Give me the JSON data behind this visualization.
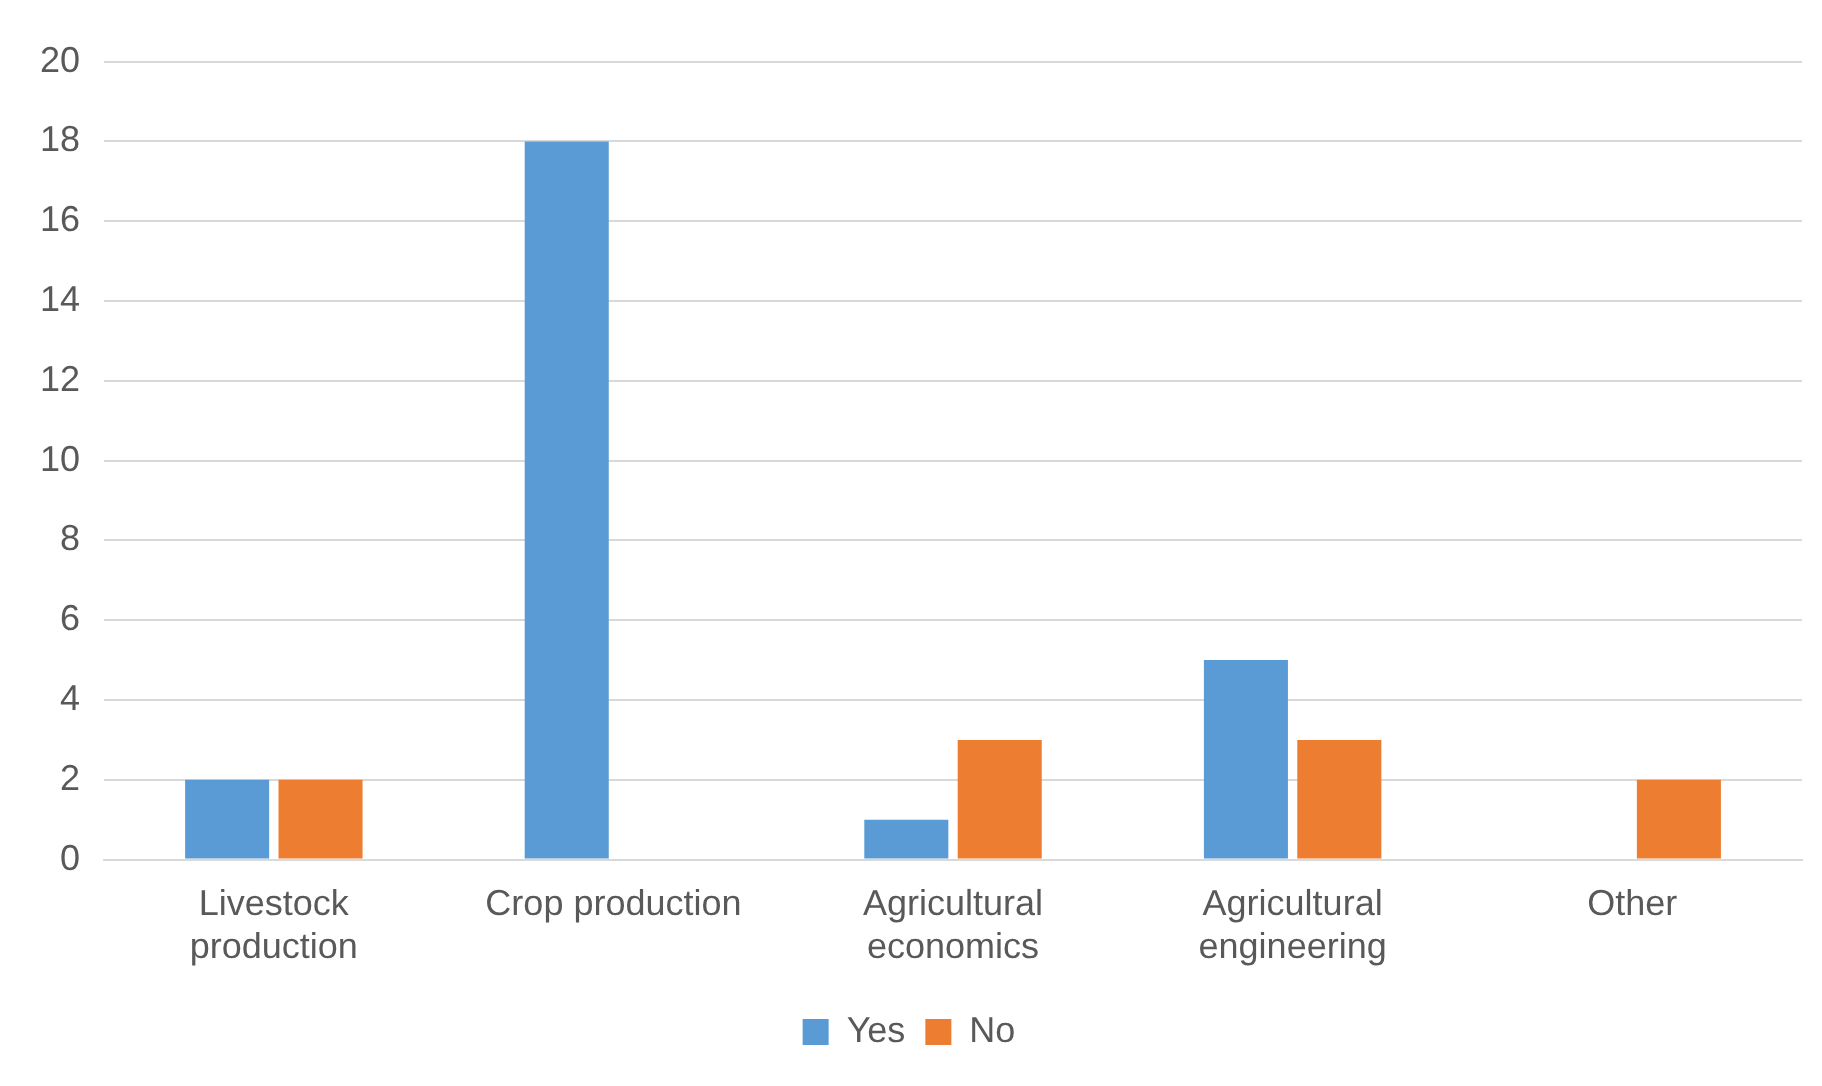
{
  "chart_data": {
    "type": "bar",
    "categories": [
      "Livestock production",
      "Crop production",
      "Agricultural economics",
      "Agricultural engineering",
      "Other"
    ],
    "series": [
      {
        "name": "Yes",
        "color": "#5b9bd5",
        "values": [
          2,
          18,
          1,
          5,
          0
        ]
      },
      {
        "name": "No",
        "color": "#ed7d31",
        "values": [
          2,
          0,
          3,
          3,
          2
        ]
      }
    ],
    "ylim": [
      0,
      20
    ],
    "yticks": [
      0,
      2,
      4,
      6,
      8,
      10,
      12,
      14,
      16,
      18,
      20
    ],
    "grid": "y",
    "legend": "bottom"
  }
}
